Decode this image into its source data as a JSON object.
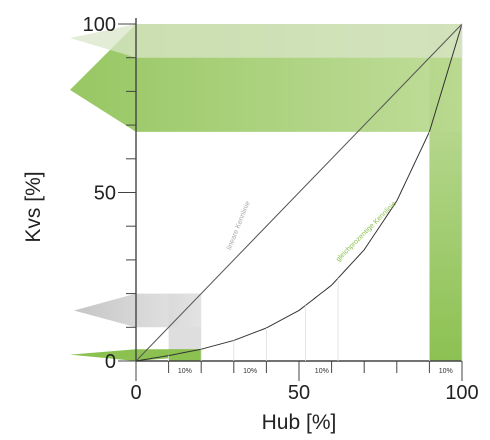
{
  "chart_data": {
    "type": "line",
    "xlabel": "Hub [%]",
    "ylabel": "Kvs [%]",
    "xlim": [
      0,
      100
    ],
    "ylim": [
      0,
      100
    ],
    "x_ticks": [
      {
        "value": 0,
        "label": "0"
      },
      {
        "value": 50,
        "label": "50"
      },
      {
        "value": 100,
        "label": "100"
      }
    ],
    "y_ticks": [
      {
        "value": 0,
        "label": "0"
      },
      {
        "value": 50,
        "label": "50"
      },
      {
        "value": 100,
        "label": "100"
      }
    ],
    "minor_tick_step": 10,
    "series": [
      {
        "name": "lineare Kennlinie",
        "color": "#555555",
        "x": [
          0,
          100
        ],
        "y": [
          0,
          100
        ]
      },
      {
        "name": "gleichprozentige Kennlinie",
        "color": "#8cc152",
        "x": [
          0,
          10,
          20,
          30,
          40,
          50,
          60,
          70,
          80,
          90,
          100
        ],
        "y": [
          0,
          1.6,
          3.5,
          6.1,
          9.8,
          15,
          22.5,
          33,
          47.5,
          68,
          100
        ]
      }
    ],
    "segments": [
      {
        "label": "10%",
        "x": [
          10,
          20
        ],
        "highlighted": true
      },
      {
        "label": "10%",
        "x": [
          30,
          40
        ],
        "highlighted": false
      },
      {
        "label": "10%",
        "x": [
          52,
          62
        ],
        "highlighted": false
      },
      {
        "label": "10%",
        "x": [
          90,
          100
        ],
        "highlighted": true
      }
    ],
    "colors": {
      "green": "#8cc152",
      "green_light": "#a9d07a",
      "grey": "#cccccc",
      "axis": "#444444"
    }
  }
}
